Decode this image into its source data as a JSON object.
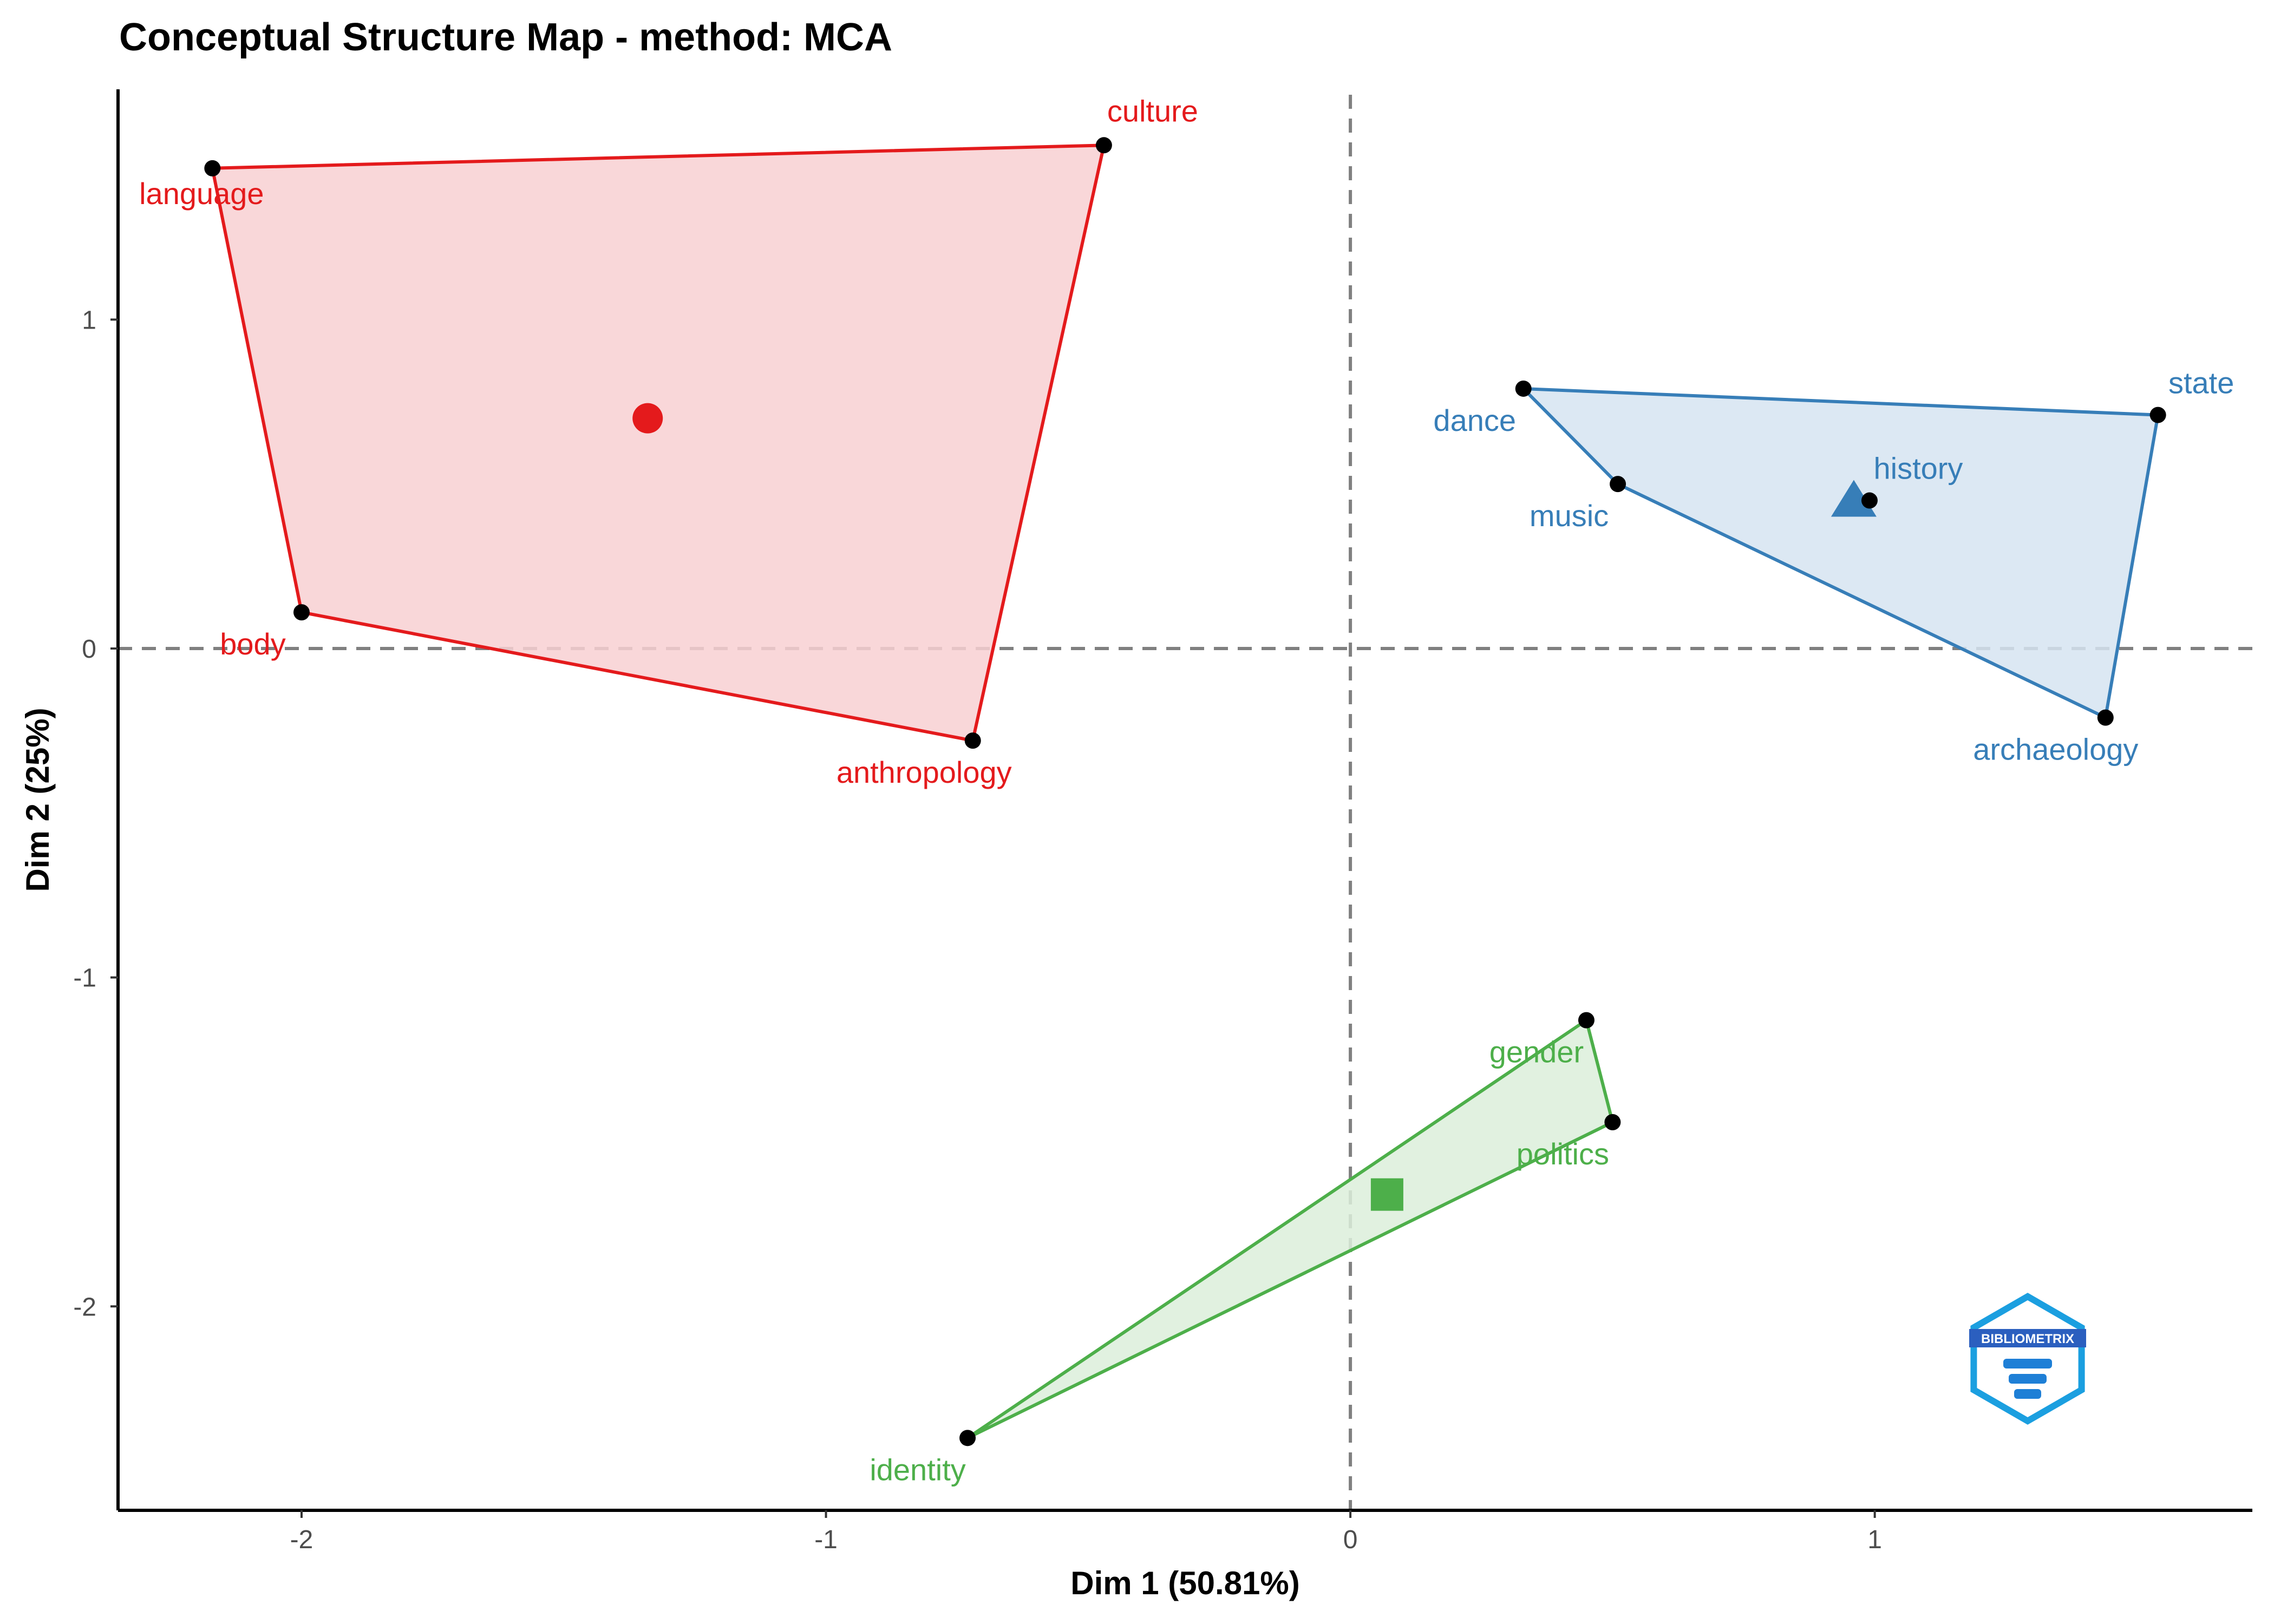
{
  "chart_data": {
    "type": "scatter",
    "title": "Conceptual Structure Map - method: MCA",
    "xlabel": "Dim 1 (50.81%)",
    "ylabel": "Dim 2 (25%)",
    "xlim": [
      -2.35,
      1.72
    ],
    "ylim": [
      -2.62,
      1.7
    ],
    "xticks": [
      -2,
      -1,
      0,
      1
    ],
    "yticks": [
      -2,
      -1,
      0,
      1
    ],
    "reference_lines": {
      "x": 0,
      "y": 0,
      "style": "dashed",
      "color": "#808080"
    },
    "grid": false,
    "legend": "none",
    "clusters": [
      {
        "color": "#e41a1c",
        "fill": "#f8d0d2",
        "centroid_shape": "circle",
        "centroid": [
          -1.34,
          0.7
        ],
        "points": [
          {
            "label": "language",
            "x": -2.17,
            "y": 1.46
          },
          {
            "label": "culture",
            "x": -0.47,
            "y": 1.53
          },
          {
            "label": "anthropology",
            "x": -0.72,
            "y": -0.28
          },
          {
            "label": "body",
            "x": -2.0,
            "y": 0.11
          }
        ]
      },
      {
        "color": "#377eb8",
        "fill": "#d6e4f1",
        "centroid_shape": "triangle",
        "centroid": [
          0.96,
          0.45
        ],
        "points": [
          {
            "label": "dance",
            "x": 0.33,
            "y": 0.79
          },
          {
            "label": "state",
            "x": 1.54,
            "y": 0.71
          },
          {
            "label": "history",
            "x": 0.99,
            "y": 0.45
          },
          {
            "label": "music",
            "x": 0.51,
            "y": 0.5
          },
          {
            "label": "archaeology",
            "x": 1.44,
            "y": -0.21
          }
        ]
      },
      {
        "color": "#4daf4a",
        "fill": "#dcefdb",
        "centroid_shape": "square",
        "centroid": [
          0.07,
          -1.66
        ],
        "points": [
          {
            "label": "gender",
            "x": 0.45,
            "y": -1.13
          },
          {
            "label": "politics",
            "x": 0.5,
            "y": -1.44
          },
          {
            "label": "identity",
            "x": -0.73,
            "y": -2.4
          }
        ]
      }
    ]
  },
  "logo": {
    "text": "BIBLIOMETRIX",
    "color": "#1e7fd6"
  }
}
